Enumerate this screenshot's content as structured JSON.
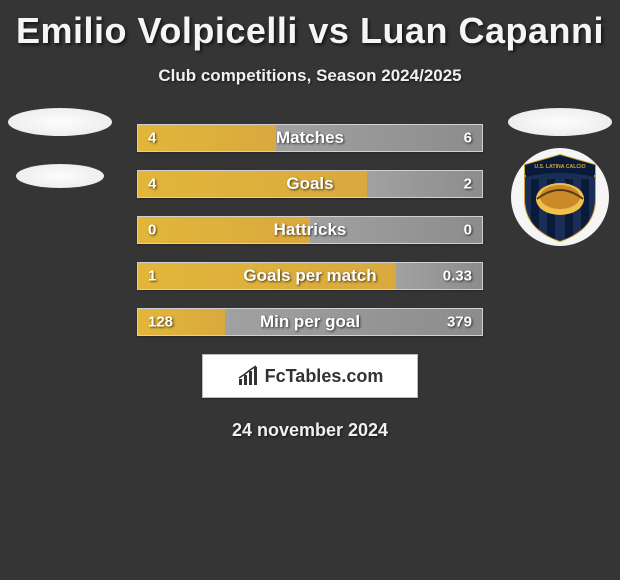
{
  "title": "Emilio Volpicelli vs Luan Capanni",
  "subtitle": "Club competitions, Season 2024/2025",
  "date": "24 november 2024",
  "brand": "FcTables.com",
  "colors": {
    "background": "#353535",
    "bar_left": "#d9a93e",
    "bar_right": "#8c8c8c",
    "bar_border": "#d0d0d0",
    "text": "#ffffff"
  },
  "bars": [
    {
      "label": "Matches",
      "left_val": "4",
      "right_val": "6",
      "left_pct": 40
    },
    {
      "label": "Goals",
      "left_val": "4",
      "right_val": "2",
      "left_pct": 66.7
    },
    {
      "label": "Hattricks",
      "left_val": "0",
      "right_val": "0",
      "left_pct": 50
    },
    {
      "label": "Goals per match",
      "left_val": "1",
      "right_val": "0.33",
      "left_pct": 75
    },
    {
      "label": "Min per goal",
      "left_val": "128",
      "right_val": "379",
      "left_pct": 25.2
    }
  ],
  "shield": {
    "top_text": "U.S. LATINA CALCIO",
    "stripes": [
      "#0a1a3a",
      "#0a1a3a"
    ],
    "accent": "#f2c14a"
  }
}
